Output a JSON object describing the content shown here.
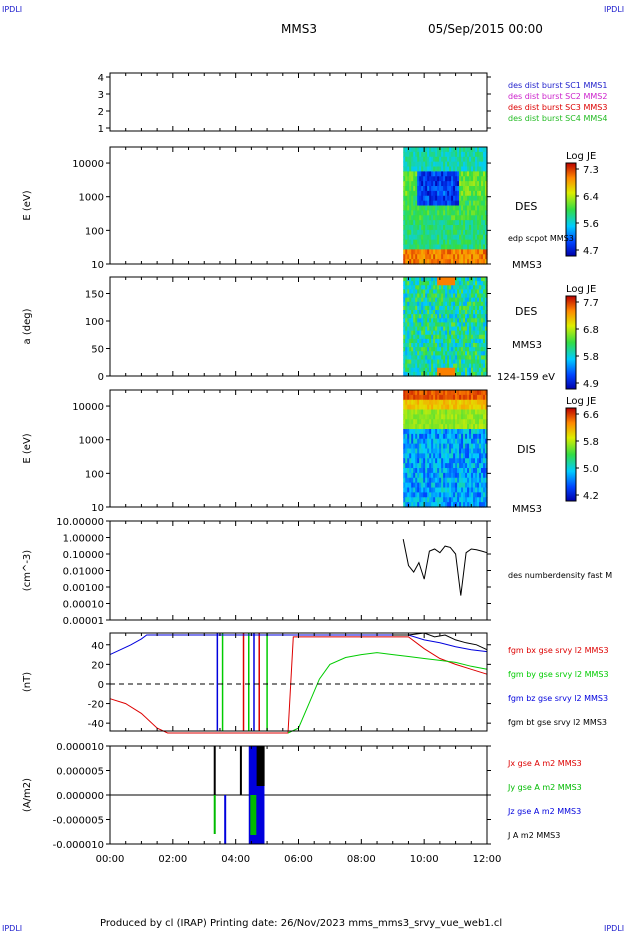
{
  "corner_label": "IPDLI",
  "header": {
    "spacecraft": "MMS3",
    "date": "05/Sep/2015 00:00"
  },
  "footer": "Produced by cl (IRAP)   Printing date: 26/Nov/2023   mms_mms3_srvy_vue_web1.cl",
  "chart_data": [
    {
      "id": "availability",
      "type": "table",
      "y_ticks": [
        "4",
        "3",
        "2",
        "1"
      ],
      "legend": [
        {
          "text": "des dist burst SC1 MMS1",
          "color": "#2222cc"
        },
        {
          "text": "des dist burst SC2 MMS2",
          "color": "#cc22cc"
        },
        {
          "text": "des dist burst SC3 MMS3",
          "color": "#dd0000"
        },
        {
          "text": "des dist burst SC4 MMS4",
          "color": "#22bb22"
        }
      ]
    },
    {
      "id": "des_energy",
      "type": "heatmap",
      "ylabel": "E (eV)",
      "yscale": "log",
      "ylim": [
        10,
        30000
      ],
      "y_ticks": [
        "10000",
        "1000",
        "100",
        "10"
      ],
      "label": "DES",
      "sublabel": "edp scpot MMS3",
      "bottom_label": "MMS3",
      "colorbar": {
        "title": "Log JE",
        "ticks": [
          "7.3",
          "6.4",
          "5.6",
          "4.7"
        ]
      },
      "data_x_range": [
        "09:20",
        "12:00"
      ]
    },
    {
      "id": "des_pitch",
      "type": "heatmap",
      "ylabel": "a (deg)",
      "ylim": [
        0,
        180
      ],
      "y_ticks": [
        "150",
        "100",
        "50",
        "0"
      ],
      "label": "DES",
      "sublabel": "MMS3",
      "bottom_label": "124-159 eV",
      "colorbar": {
        "title": "Log JE",
        "ticks": [
          "7.7",
          "6.8",
          "5.8",
          "4.9"
        ]
      },
      "data_x_range": [
        "09:20",
        "12:00"
      ]
    },
    {
      "id": "dis_energy",
      "type": "heatmap",
      "ylabel": "E (eV)",
      "yscale": "log",
      "ylim": [
        10,
        30000
      ],
      "y_ticks": [
        "10000",
        "1000",
        "100",
        "10"
      ],
      "label": "DIS",
      "bottom_label": "MMS3",
      "colorbar": {
        "title": "Log JE",
        "ticks": [
          "6.6",
          "5.8",
          "5.0",
          "4.2"
        ]
      },
      "data_x_range": [
        "09:20",
        "12:00"
      ]
    },
    {
      "id": "density",
      "type": "line",
      "ylabel": "(cm^-3)",
      "yscale": "log",
      "ylim": [
        1e-05,
        10
      ],
      "y_ticks": [
        "10.00000",
        "1.00000",
        "0.10000",
        "0.01000",
        "0.00100",
        "0.00010",
        "0.00001"
      ],
      "series": [
        {
          "name": "des numberdensity fast M",
          "color": "#000000",
          "x": [
            "09:20",
            "09:30",
            "09:40",
            "09:50",
            "10:00",
            "10:10",
            "10:20",
            "10:30",
            "10:40",
            "10:50",
            "11:00",
            "11:10",
            "11:20",
            "11:30",
            "11:40",
            "11:50",
            "12:00"
          ],
          "y": [
            0.8,
            0.02,
            0.008,
            0.03,
            0.003,
            0.15,
            0.2,
            0.12,
            0.3,
            0.25,
            0.1,
            0.0003,
            0.12,
            0.2,
            0.18,
            0.15,
            0.12
          ]
        }
      ]
    },
    {
      "id": "bfield",
      "type": "line",
      "ylabel": "(nT)",
      "ylim": [
        -48,
        52
      ],
      "y_ticks": [
        "40",
        "20",
        "0",
        "-20",
        "-40"
      ],
      "series": [
        {
          "name": "fgm bx gse srvy l2 MMS3",
          "color": "#dd0000",
          "x": [
            "00:00",
            "00:30",
            "01:00",
            "01:30",
            "01:50",
            "05:40",
            "05:50",
            "09:00",
            "09:30",
            "10:00",
            "10:30",
            "11:00",
            "11:30",
            "12:00"
          ],
          "y": [
            -15,
            -20,
            -30,
            -45,
            -50,
            -50,
            48,
            48,
            48,
            36,
            26,
            20,
            15,
            10
          ]
        },
        {
          "name": "fgm by gse srvy l2 MMS3",
          "color": "#00cc00",
          "x": [
            "05:40",
            "06:00",
            "06:20",
            "06:40",
            "07:00",
            "07:30",
            "08:00",
            "08:30",
            "09:00",
            "09:30",
            "10:00",
            "10:30",
            "11:00",
            "11:30",
            "12:00"
          ],
          "y": [
            -50,
            -45,
            -20,
            5,
            20,
            27,
            30,
            32,
            30,
            28,
            26,
            24,
            22,
            18,
            15
          ]
        },
        {
          "name": "fgm bz gse srvy l2 MMS3",
          "color": "#0000dd",
          "x": [
            "00:00",
            "00:20",
            "00:40",
            "01:00",
            "01:10",
            "09:00",
            "09:30",
            "10:00",
            "10:30",
            "11:00",
            "11:30",
            "12:00"
          ],
          "y": [
            30,
            35,
            40,
            46,
            50,
            50,
            50,
            45,
            42,
            38,
            35,
            33
          ]
        },
        {
          "name": "fgm bt gse srvy l2 MMS3",
          "color": "#000000",
          "x": [
            "09:00",
            "09:30",
            "10:00",
            "10:20",
            "10:40",
            "11:00",
            "11:20",
            "11:40",
            "12:00"
          ],
          "y": [
            50,
            50,
            52,
            48,
            50,
            45,
            42,
            40,
            35
          ]
        }
      ],
      "zero_line": true
    },
    {
      "id": "current",
      "type": "line",
      "ylabel": "(A/m2)",
      "ylim": [
        -1e-05,
        1e-05
      ],
      "y_ticks": [
        "0.000010",
        "0.000005",
        "0.000000",
        "-0.000005",
        "-0.000010"
      ],
      "series": [
        {
          "name": "Jx gse A m2 MMS3",
          "color": "#dd0000"
        },
        {
          "name": "Jy gse A m2 MMS3",
          "color": "#00bb00"
        },
        {
          "name": "Jz gse A m2 MMS3",
          "color": "#0000dd"
        },
        {
          "name": "J A m2 MMS3",
          "color": "#000000"
        }
      ],
      "x_ticks": [
        "00:00",
        "02:00",
        "04:00",
        "06:00",
        "08:00",
        "10:00",
        "12:00"
      ]
    }
  ]
}
